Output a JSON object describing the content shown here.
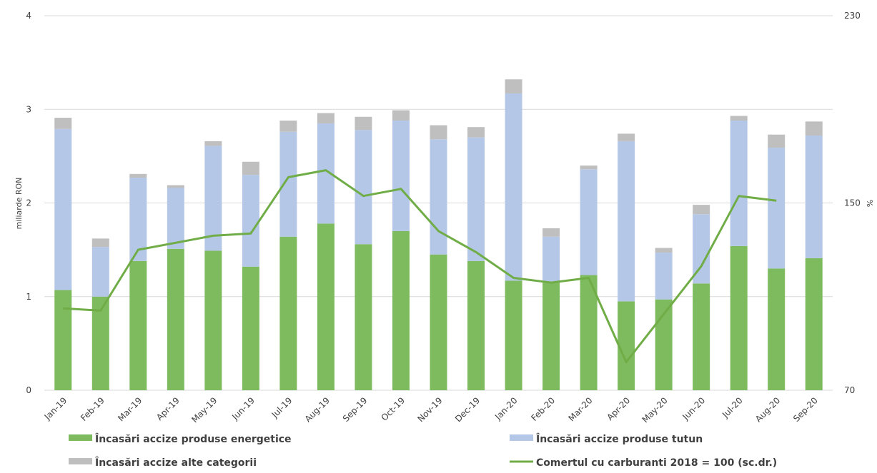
{
  "chart_data": {
    "type": "bar",
    "stacked": true,
    "categories": [
      "Jan-19",
      "Feb-19",
      "Mar-19",
      "Apr-19",
      "May-19",
      "Jun-19",
      "Jul-19",
      "Aug-19",
      "Sep-19",
      "Oct-19",
      "Nov-19",
      "Dec-19",
      "Jan-20",
      "Feb-20",
      "Mar-20",
      "Apr-20",
      "May-20",
      "Jun-20",
      "Jul-20",
      "Aug-20",
      "Sep-20"
    ],
    "ylabel": "miliarde RON",
    "y2label": "%",
    "ylim": [
      0,
      4
    ],
    "y2lim": [
      70,
      230
    ],
    "yticks": [
      "0",
      "1",
      "2",
      "3",
      "4"
    ],
    "y2ticks": [
      "70",
      "150",
      "230"
    ],
    "grid": true,
    "legend_position": "bottom",
    "series": [
      {
        "name": "Încasări accize produse energetice",
        "type": "bar",
        "color": "#7dbb5e",
        "values": [
          1.07,
          1.0,
          1.38,
          1.51,
          1.49,
          1.32,
          1.64,
          1.78,
          1.56,
          1.7,
          1.45,
          1.38,
          1.17,
          1.15,
          1.23,
          0.95,
          0.97,
          1.14,
          1.54,
          1.3,
          1.41
        ]
      },
      {
        "name": "Încasări accize produse tutun",
        "type": "bar",
        "color": "#b4c7e7",
        "values": [
          1.72,
          0.53,
          0.89,
          0.65,
          1.12,
          0.98,
          1.12,
          1.07,
          1.22,
          1.18,
          1.23,
          1.32,
          2.0,
          0.49,
          1.13,
          1.71,
          0.5,
          0.74,
          1.34,
          1.29,
          1.31
        ]
      },
      {
        "name": "Încasări accize alte categorii",
        "type": "bar",
        "color": "#bfbfbf",
        "values": [
          0.12,
          0.09,
          0.04,
          0.03,
          0.05,
          0.14,
          0.12,
          0.11,
          0.14,
          0.11,
          0.15,
          0.11,
          0.15,
          0.09,
          0.04,
          0.08,
          0.05,
          0.1,
          0.05,
          0.14,
          0.15
        ]
      },
      {
        "name": "Comertul cu carburanti 2018 = 100 (sc.dr.)",
        "type": "line",
        "axis": "right",
        "color": "#70ad47",
        "values": [
          105,
          104,
          130,
          133,
          136,
          137,
          161,
          164,
          153,
          156,
          138,
          129,
          118,
          116,
          118,
          82,
          null,
          123,
          153,
          151,
          null
        ]
      }
    ]
  }
}
